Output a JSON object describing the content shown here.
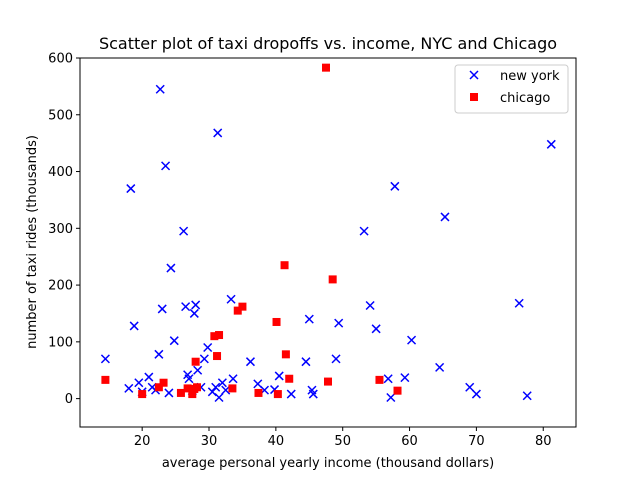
{
  "chart_data": {
    "type": "scatter",
    "title": "Scatter plot of taxi dropoffs vs. income, NYC and Chicago",
    "xlabel": "average personal yearly income (thousand dollars)",
    "ylabel": "number of taxi rides (thousands)",
    "xlim": [
      10.7,
      84.9
    ],
    "ylim": [
      -50,
      600
    ],
    "xticks": [
      20,
      30,
      40,
      50,
      60,
      70,
      80
    ],
    "yticks": [
      0,
      100,
      200,
      300,
      400,
      500,
      600
    ],
    "grid": false,
    "legend_position": "top-right",
    "series": [
      {
        "name": "new york",
        "marker": "x",
        "color": "#0000ff",
        "points": [
          [
            14.5,
            70
          ],
          [
            18.0,
            18
          ],
          [
            18.3,
            370
          ],
          [
            18.8,
            128
          ],
          [
            19.5,
            28
          ],
          [
            20.0,
            12
          ],
          [
            21.0,
            38
          ],
          [
            21.5,
            20
          ],
          [
            22.0,
            15
          ],
          [
            22.5,
            78
          ],
          [
            22.7,
            545
          ],
          [
            23.0,
            158
          ],
          [
            23.5,
            410
          ],
          [
            24.0,
            10
          ],
          [
            24.3,
            230
          ],
          [
            24.8,
            102
          ],
          [
            26.2,
            295
          ],
          [
            26.5,
            162
          ],
          [
            26.8,
            42
          ],
          [
            27.0,
            35
          ],
          [
            27.5,
            14
          ],
          [
            27.8,
            150
          ],
          [
            28.0,
            165
          ],
          [
            28.3,
            50
          ],
          [
            28.8,
            20
          ],
          [
            29.3,
            70
          ],
          [
            29.8,
            90
          ],
          [
            30.5,
            12
          ],
          [
            31.0,
            20
          ],
          [
            31.3,
            468
          ],
          [
            31.5,
            2
          ],
          [
            32.0,
            28
          ],
          [
            32.5,
            15
          ],
          [
            33.3,
            175
          ],
          [
            33.6,
            35
          ],
          [
            36.2,
            65
          ],
          [
            37.3,
            26
          ],
          [
            38.3,
            15
          ],
          [
            39.8,
            16
          ],
          [
            40.5,
            40
          ],
          [
            42.3,
            8
          ],
          [
            44.5,
            65
          ],
          [
            45.0,
            140
          ],
          [
            45.4,
            15
          ],
          [
            45.6,
            8
          ],
          [
            49.0,
            70
          ],
          [
            49.4,
            133
          ],
          [
            53.2,
            295
          ],
          [
            54.1,
            164
          ],
          [
            55.0,
            123
          ],
          [
            56.8,
            35
          ],
          [
            57.2,
            2
          ],
          [
            57.8,
            374
          ],
          [
            59.3,
            37
          ],
          [
            60.3,
            103
          ],
          [
            64.5,
            55
          ],
          [
            65.3,
            320
          ],
          [
            69.0,
            20
          ],
          [
            70.0,
            8
          ],
          [
            76.4,
            168
          ],
          [
            77.6,
            5
          ],
          [
            81.2,
            448
          ]
        ]
      },
      {
        "name": "chicago",
        "marker": "square",
        "color": "#ff0000",
        "points": [
          [
            14.5,
            33
          ],
          [
            20.0,
            8
          ],
          [
            22.5,
            20
          ],
          [
            23.2,
            28
          ],
          [
            25.8,
            10
          ],
          [
            26.8,
            18
          ],
          [
            27.5,
            8
          ],
          [
            27.8,
            17
          ],
          [
            28.0,
            65
          ],
          [
            28.2,
            20
          ],
          [
            30.8,
            110
          ],
          [
            31.2,
            75
          ],
          [
            31.5,
            112
          ],
          [
            33.5,
            18
          ],
          [
            34.3,
            155
          ],
          [
            35.0,
            162
          ],
          [
            37.4,
            10
          ],
          [
            40.1,
            135
          ],
          [
            40.3,
            8
          ],
          [
            41.3,
            235
          ],
          [
            41.5,
            78
          ],
          [
            42.0,
            35
          ],
          [
            47.5,
            583
          ],
          [
            47.8,
            30
          ],
          [
            48.5,
            210
          ],
          [
            55.5,
            33
          ],
          [
            58.2,
            14
          ]
        ]
      }
    ]
  }
}
